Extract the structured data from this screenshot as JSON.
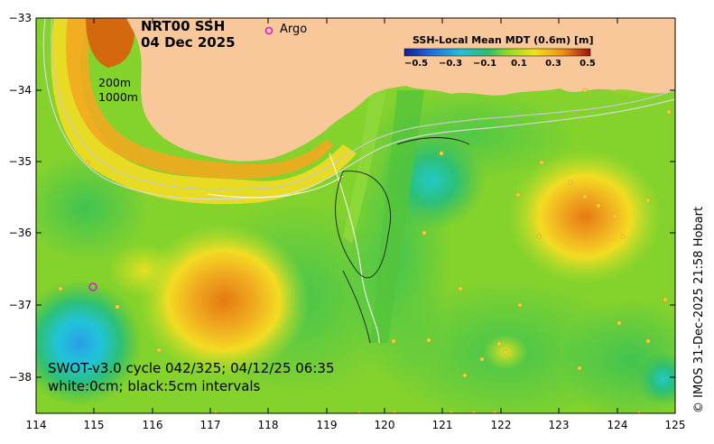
{
  "map": {
    "title_line1": "NRT00 SSH",
    "title_line2": "04 Dec 2025",
    "legend_argo_label": "Argo",
    "contour_label_200": "200m",
    "contour_label_1000": "1000m",
    "swot_line": "SWOT-v3.0 cycle 042/325; 04/12/25 06:35",
    "interval_line": "white:0cm; black:5cm intervals",
    "credit": "© IMOS 31-Dec-2025 21:58 Hobart",
    "colorbar": {
      "title": "SSH-Local Mean MDT (0.6m) [m]",
      "ticks": [
        "−0.5",
        "−0.3",
        "−0.1",
        "0.1",
        "0.3",
        "0.5"
      ]
    },
    "y_ticks": [
      "−33",
      "−34",
      "−35",
      "−36",
      "−37",
      "−38"
    ],
    "x_ticks": [
      "114",
      "115",
      "116",
      "117",
      "118",
      "119",
      "120",
      "121",
      "122",
      "123",
      "124",
      "125"
    ],
    "colors": {
      "land": "#f9c89a",
      "background": "#7ecf2a",
      "high": "#e07a10",
      "low": "#22a6d6"
    }
  }
}
